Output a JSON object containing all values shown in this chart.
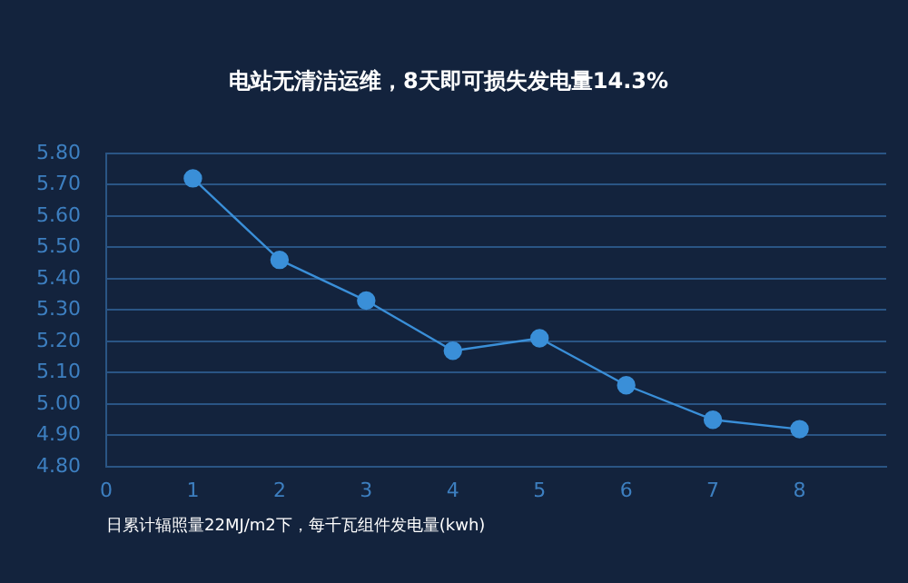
{
  "chart_data": {
    "type": "line",
    "title": "电站无清洁运维，8天即可损失发电量14.3%",
    "xlabel": "日累计辐照量22MJ/m2下，每千瓦组件发电量(kwh)",
    "x": [
      1,
      2,
      3,
      4,
      5,
      6,
      7,
      8
    ],
    "series": [
      {
        "color": "#3a8fd8",
        "values": [
          5.72,
          5.46,
          5.33,
          5.17,
          5.21,
          5.06,
          4.95,
          4.92
        ]
      }
    ],
    "xlim": [
      0,
      9
    ],
    "xticks": [
      0,
      1,
      2,
      3,
      4,
      5,
      6,
      7,
      8
    ],
    "ylim": [
      4.8,
      5.8
    ],
    "yticks": [
      {
        "value": 4.8,
        "label": "4.80"
      },
      {
        "value": 4.9,
        "label": "4.90"
      },
      {
        "value": 5.0,
        "label": "5.00"
      },
      {
        "value": 5.1,
        "label": "5.10"
      },
      {
        "value": 5.2,
        "label": "5.20"
      },
      {
        "value": 5.3,
        "label": "5.30"
      },
      {
        "value": 5.4,
        "label": "5.40"
      },
      {
        "value": 5.5,
        "label": "5.50"
      },
      {
        "value": 5.6,
        "label": "5.60"
      },
      {
        "value": 5.7,
        "label": "5.70"
      },
      {
        "value": 5.8,
        "label": "5.80"
      }
    ],
    "grid": "y",
    "legend": false,
    "marker": "circle",
    "line_style": "solid"
  }
}
